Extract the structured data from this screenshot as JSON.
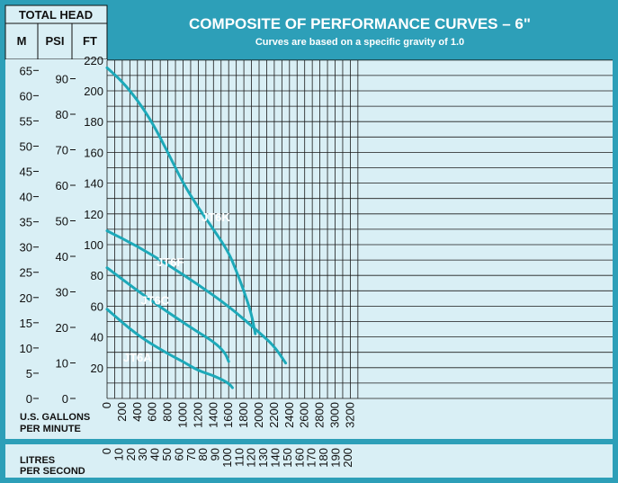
{
  "header": {
    "total_head": "TOTAL HEAD",
    "col_m": "M",
    "col_psi": "PSI",
    "col_ft": "FT"
  },
  "labels": {
    "gpm": [
      "U.S. GALLONS",
      "PER MINUTE"
    ],
    "lps": [
      "LITRES",
      "PER SECOND"
    ]
  },
  "colors": {
    "background": "#2d9fb8",
    "plot": "#d9eff5",
    "curve": "#1da9b9",
    "grid": "#1a1a1a",
    "panel": "#2d9fb8"
  },
  "chart_data": {
    "type": "line",
    "title": "COMPOSITE OF PERFORMANCE CURVES – 6\"",
    "subtitle": "Curves are based on a specific gravity of 1.0",
    "xlabel": "U.S. GALLONS PER MINUTE",
    "ylabel": "TOTAL HEAD FT",
    "xlim": [
      0,
      3300
    ],
    "ylim": [
      0,
      230
    ],
    "grid": true,
    "x_ticks": [
      0,
      200,
      400,
      600,
      800,
      1000,
      1200,
      1400,
      1600,
      1800,
      2000,
      2200,
      2400,
      2600,
      2800,
      3000,
      3200
    ],
    "y_ticks_ft": [
      20,
      40,
      60,
      80,
      100,
      120,
      140,
      160,
      180,
      200,
      220
    ],
    "y_ticks_psi": [
      0,
      10,
      20,
      30,
      40,
      50,
      60,
      70,
      80,
      90
    ],
    "y_ticks_m": [
      0,
      5,
      10,
      15,
      20,
      25,
      30,
      35,
      40,
      45,
      50,
      55,
      60,
      65
    ],
    "x2_ticks_lps": [
      0,
      10,
      20,
      30,
      40,
      50,
      60,
      70,
      80,
      90,
      100,
      110,
      120,
      130,
      140,
      150,
      160,
      170,
      180,
      190,
      200
    ],
    "series": [
      {
        "name": "JT6K",
        "x": [
          0,
          200,
          400,
          600,
          800,
          1000,
          1200,
          1400,
          1600,
          1700,
          1800,
          1900,
          1950
        ],
        "y": [
          215,
          206,
          194,
          179,
          160,
          140,
          124,
          110,
          95,
          83,
          70,
          55,
          42
        ]
      },
      {
        "name": "JT6F",
        "x": [
          0,
          400,
          800,
          1200,
          1600,
          2000,
          2200,
          2350
        ],
        "y": [
          109,
          99,
          87,
          74,
          60,
          43,
          34,
          23
        ]
      },
      {
        "name": "JT6C",
        "x": [
          0,
          400,
          800,
          1200,
          1400,
          1550,
          1600
        ],
        "y": [
          85,
          70,
          56,
          43,
          37,
          30,
          24
        ]
      },
      {
        "name": "JT6A",
        "x": [
          0,
          400,
          800,
          1000,
          1200,
          1400,
          1600,
          1650
        ],
        "y": [
          58,
          41,
          29,
          24,
          18,
          15,
          10,
          7
        ]
      }
    ]
  }
}
